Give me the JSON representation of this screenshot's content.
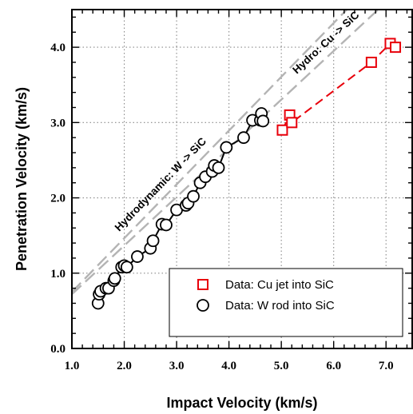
{
  "chart_data": {
    "type": "scatter",
    "xlabel": "Impact Velocity (km/s)",
    "ylabel": "Penetration Velocity (km/s)",
    "xlim": [
      1.0,
      7.5
    ],
    "ylim": [
      0.0,
      4.5
    ],
    "x_ticks": [
      1.0,
      2.0,
      3.0,
      4.0,
      5.0,
      6.0,
      7.0
    ],
    "x_tick_labels": [
      "1.0",
      "2.0",
      "3.0",
      "4.0",
      "5.0",
      "6.0",
      "7.0"
    ],
    "y_ticks": [
      0.0,
      1.0,
      2.0,
      3.0,
      4.0
    ],
    "y_tick_labels": [
      "0.0",
      "1.0",
      "2.0",
      "3.0",
      "4.0"
    ],
    "grid": true,
    "legend_position": "bottom-right",
    "series": [
      {
        "name": "Data: Cu jet into SiC",
        "marker": "square",
        "color": "#e8000b",
        "connect_line": "dashed",
        "x": [
          5.02,
          5.16,
          5.2,
          6.72,
          7.08,
          7.18
        ],
        "y": [
          2.9,
          3.1,
          3.0,
          3.8,
          4.05,
          4.0
        ]
      },
      {
        "name": "Data: W rod into SiC",
        "marker": "circle",
        "color": "#000000",
        "connect_line": "solid",
        "x": [
          1.5,
          1.52,
          1.55,
          1.65,
          1.7,
          1.8,
          1.82,
          1.95,
          2.0,
          2.05,
          2.25,
          2.5,
          2.55,
          2.72,
          2.8,
          3.0,
          3.18,
          3.22,
          3.32,
          3.45,
          3.55,
          3.68,
          3.72,
          3.8,
          3.95,
          4.28,
          4.45,
          4.6,
          4.62,
          4.65
        ],
        "y": [
          0.6,
          0.72,
          0.76,
          0.8,
          0.8,
          0.9,
          0.93,
          1.08,
          1.1,
          1.08,
          1.22,
          1.33,
          1.43,
          1.65,
          1.64,
          1.84,
          1.9,
          1.93,
          2.02,
          2.2,
          2.28,
          2.35,
          2.43,
          2.4,
          2.67,
          2.8,
          3.03,
          3.03,
          3.12,
          3.02
        ]
      }
    ],
    "reference_lines": [
      {
        "label": "Hydrodynamic:  W -> SiC",
        "color": "#b4b4b4",
        "style": "long-dash",
        "x": [
          1.0,
          6.25
        ],
        "y": [
          0.75,
          4.5
        ]
      },
      {
        "label": "Hydro:  Cu -> SiC",
        "color": "#b4b4b4",
        "style": "long-dash",
        "x": [
          1.0,
          6.85
        ],
        "y": [
          0.72,
          4.5
        ]
      }
    ]
  }
}
